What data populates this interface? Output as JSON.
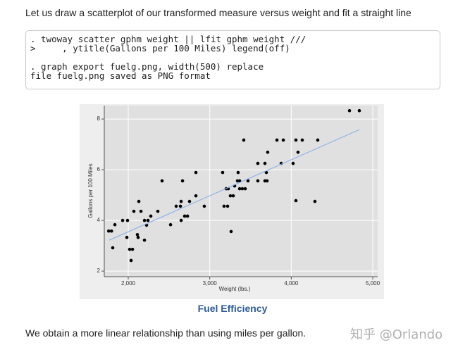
{
  "intro": "Let us draw a scatterplot of our transformed measure versus weight and fit a straight line",
  "code_blocks": [
    [
      ". twoway scatter gphm weight || lfit gphm weight ///",
      ">     , ytitle(Gallons per 100 Miles) legend(off)"
    ],
    [
      ". graph export fuelg.png, width(500) replace",
      "file fuelg.png saved as PNG format"
    ]
  ],
  "chart_data": {
    "type": "scatter",
    "x_label": "Weight (lbs.)",
    "y_label": "Gallons per 100 Miles",
    "xlim": [
      1706,
      5060
    ],
    "ylim": [
      1.78,
      8.53
    ],
    "xticks": [
      {
        "value": 2000,
        "label": "2,000"
      },
      {
        "value": 3000,
        "label": "3,000"
      },
      {
        "value": 4000,
        "label": "4,000"
      },
      {
        "value": 5000,
        "label": "5,000"
      }
    ],
    "yticks": [
      2,
      4,
      6,
      8
    ],
    "grid": true,
    "legend": false,
    "series": [
      {
        "type": "scatter",
        "color": "#000000",
        "x": [
          1760,
          1795,
          1810,
          1836,
          1931,
          1991,
          1983,
          2017,
          2052,
          2035,
          2069,
          2112,
          2121,
          2130,
          2156,
          2199,
          2199,
          2225,
          2242,
          2277,
          2363,
          2415,
          2519,
          2588,
          2649,
          2640,
          2666,
          2649,
          2692,
          2727,
          2752,
          2830,
          2830,
          2933,
          3158,
          3175,
          3219,
          3201,
          3227,
          3253,
          3288,
          3262,
          3305,
          3340,
          3366,
          3348,
          3366,
          3400,
          3435,
          3417,
          3469,
          3590,
          3590,
          3677,
          3677,
          3703,
          3711,
          3694,
          3824,
          3876,
          3902,
          4022,
          4057,
          4057,
          4083,
          4135,
          4290,
          4325,
          4714,
          4835
        ],
        "values": [
          3.58,
          3.58,
          2.92,
          3.83,
          4.0,
          4.0,
          3.33,
          2.86,
          2.86,
          2.42,
          4.36,
          3.44,
          3.33,
          4.75,
          4.36,
          4.0,
          3.22,
          3.81,
          4.0,
          4.17,
          4.36,
          5.56,
          3.83,
          4.56,
          4.75,
          4.56,
          5.56,
          4.0,
          4.17,
          4.17,
          4.75,
          4.97,
          5.89,
          4.56,
          5.89,
          4.56,
          4.56,
          5.25,
          5.25,
          4.97,
          4.97,
          3.56,
          5.36,
          5.56,
          5.56,
          5.89,
          5.25,
          5.25,
          5.25,
          7.17,
          5.56,
          6.25,
          5.56,
          6.25,
          5.56,
          5.56,
          6.69,
          5.89,
          7.17,
          6.25,
          7.17,
          6.25,
          7.17,
          4.78,
          6.69,
          7.17,
          4.75,
          7.17,
          8.33,
          8.33
        ]
      },
      {
        "type": "line",
        "color": "#8fb4e8",
        "x": [
          1767,
          4835
        ],
        "values": [
          3.22,
          7.58
        ]
      }
    ]
  },
  "caption": "Fuel Efficiency",
  "outro": "We obtain a more linear relationship than using miles per gallon.",
  "watermark": "知乎 @Orlando"
}
